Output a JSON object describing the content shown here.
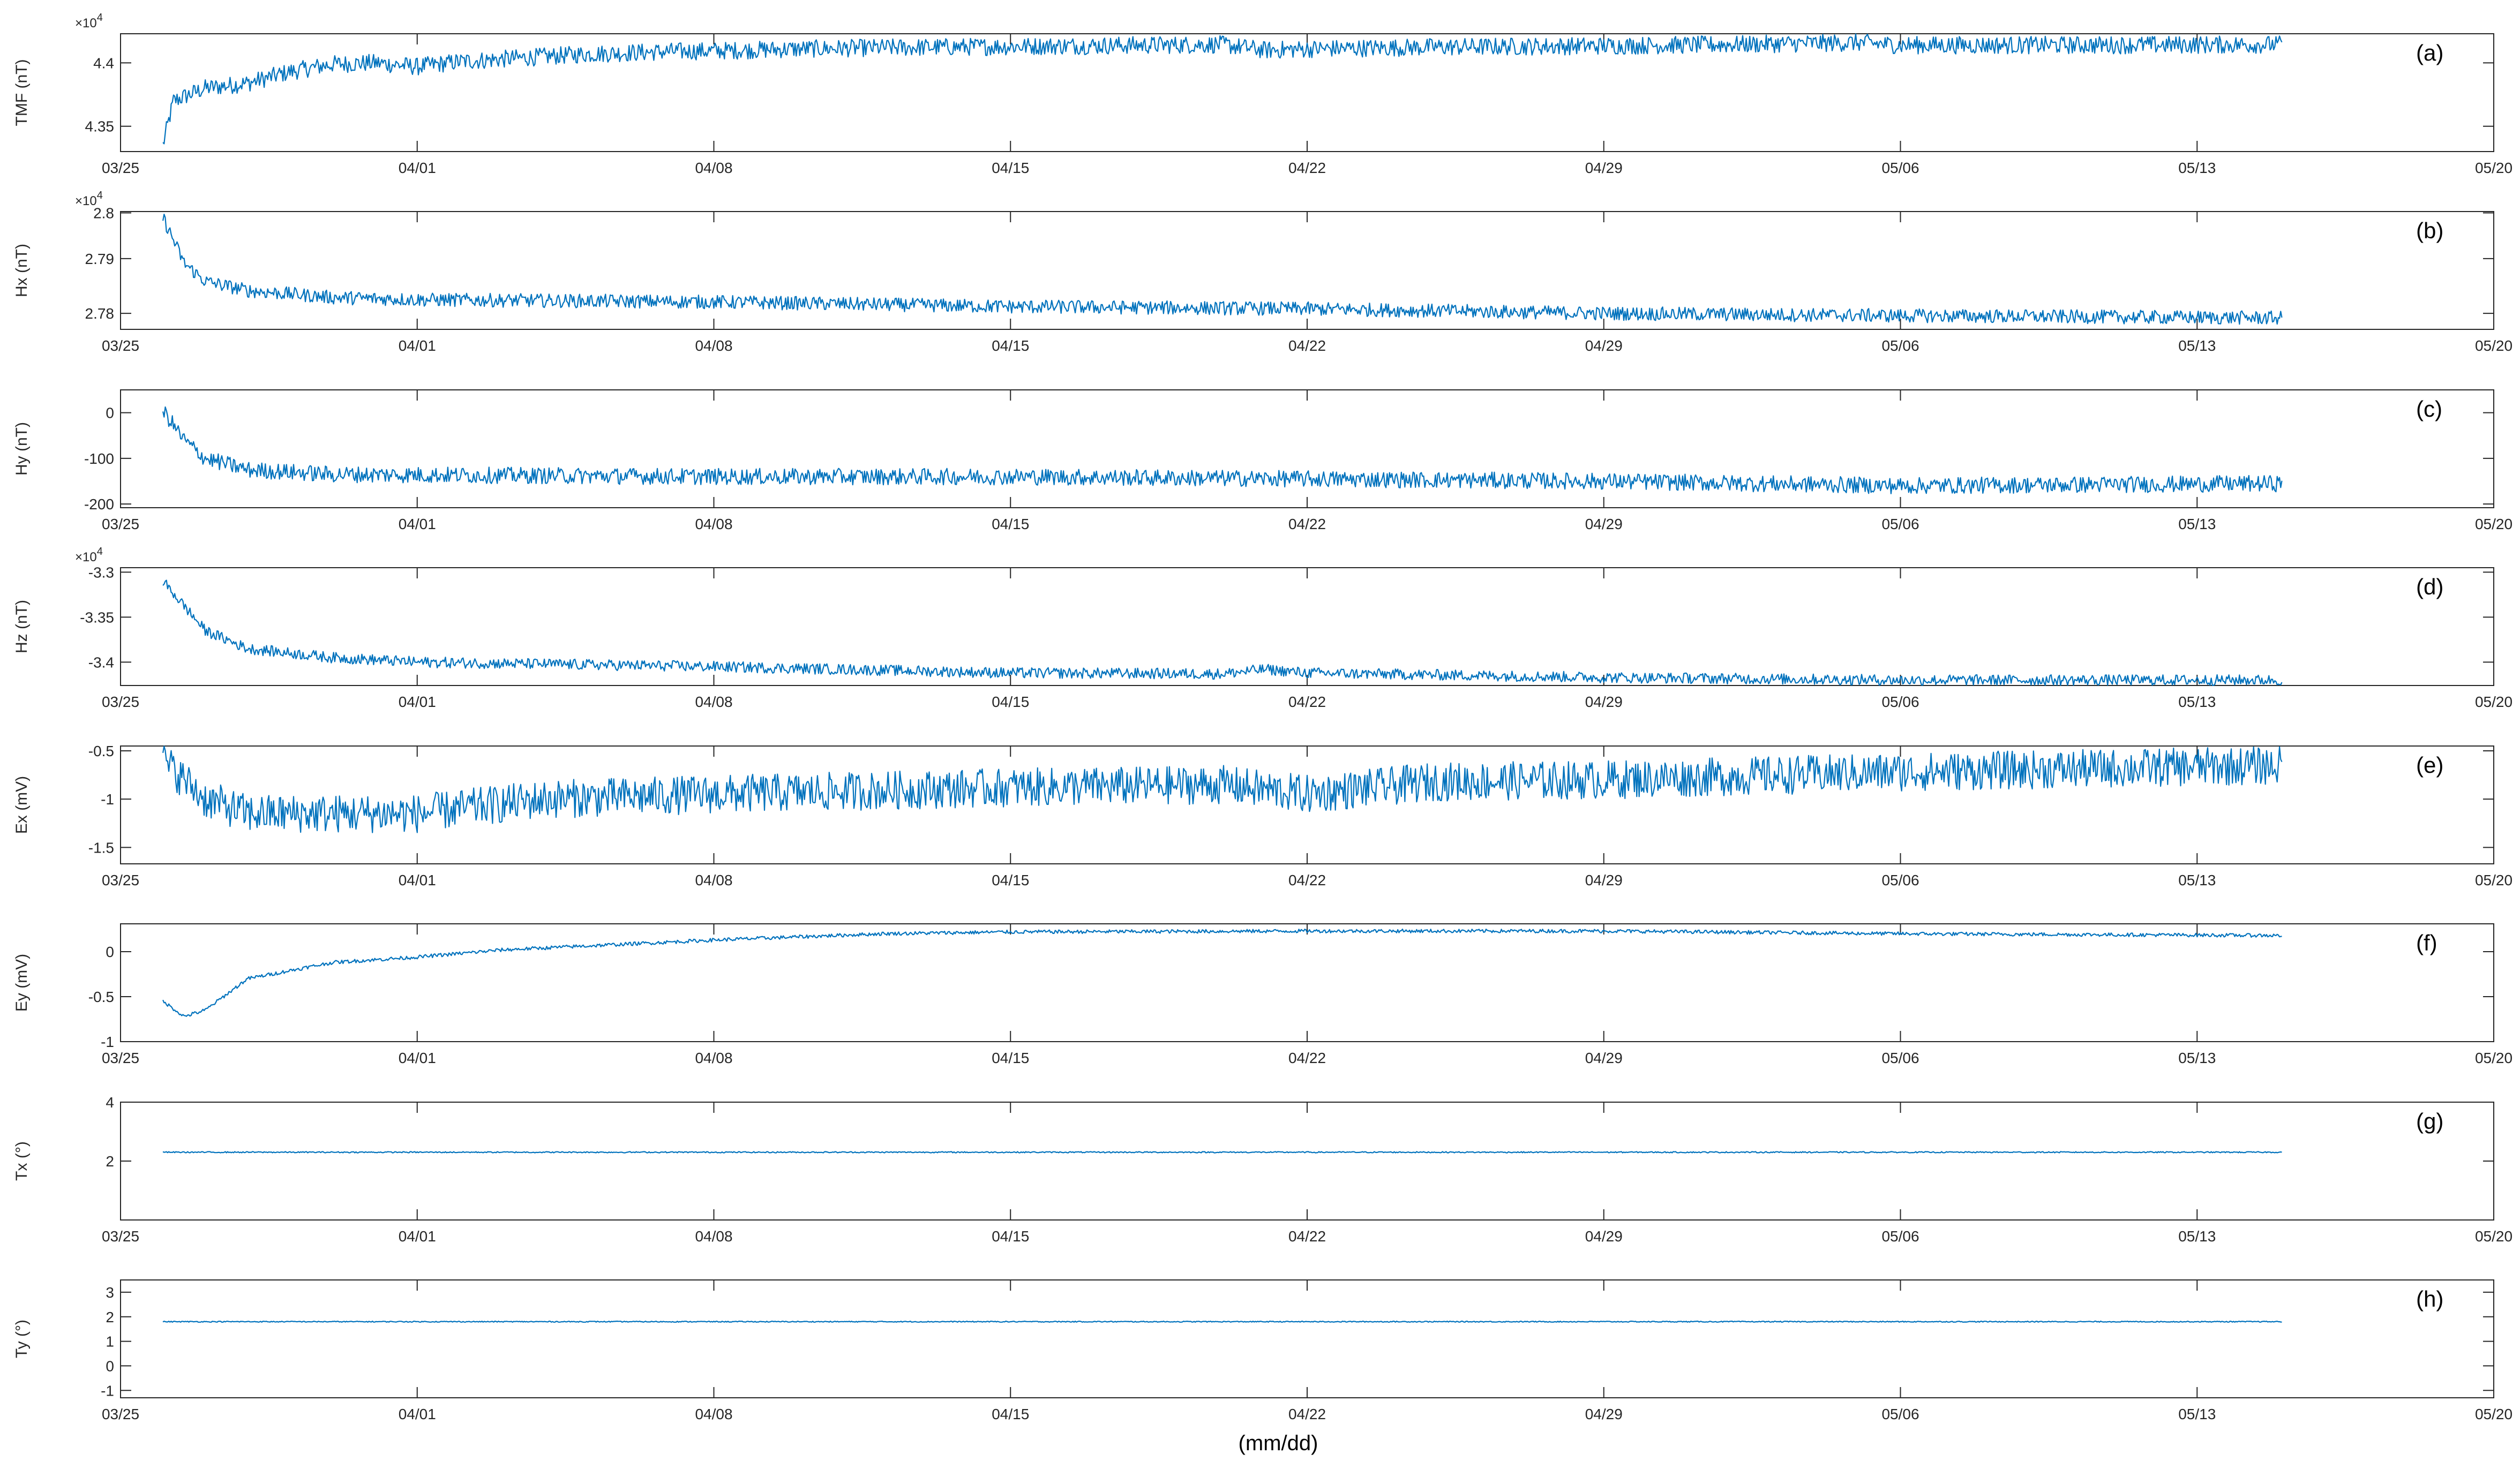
{
  "figure": {
    "xlabel": "(mm/dd)",
    "line_color": "#0072BD",
    "axis_color": "#262626",
    "x_axis_type": "date",
    "x_range": [
      "03/25",
      "05/20"
    ],
    "x_ticks": [
      "03/25",
      "04/01",
      "04/08",
      "04/15",
      "04/22",
      "04/29",
      "05/06",
      "05/13",
      "05/20"
    ]
  },
  "chart_data": [
    {
      "type": "line",
      "tag": "(a)",
      "ylabel": "TMF (nT)",
      "multiplier": "10",
      "exponent": "4",
      "ylim": [
        43300,
        44230
      ],
      "yticks": [
        {
          "value": 43500,
          "label": "4.35"
        },
        {
          "value": 44000,
          "label": "4.4"
        }
      ],
      "noise": 70,
      "data": [
        [
          "03/26",
          43350
        ],
        [
          "03/26 06:00",
          43700
        ],
        [
          "03/27",
          43800
        ],
        [
          "03/28",
          43840
        ],
        [
          "03/29",
          43930
        ],
        [
          "03/30",
          43990
        ],
        [
          "03/31",
          44000
        ],
        [
          "04/01",
          43970
        ],
        [
          "04/02",
          44010
        ],
        [
          "04/03",
          44030
        ],
        [
          "04/04",
          44050
        ],
        [
          "04/05",
          44070
        ],
        [
          "04/06",
          44080
        ],
        [
          "04/07",
          44090
        ],
        [
          "04/08",
          44095
        ],
        [
          "04/10",
          44110
        ],
        [
          "04/12",
          44120
        ],
        [
          "04/15",
          44130
        ],
        [
          "04/18",
          44140
        ],
        [
          "04/20",
          44145
        ],
        [
          "04/21",
          44100
        ],
        [
          "04/22",
          44110
        ],
        [
          "04/25",
          44125
        ],
        [
          "04/29",
          44135
        ],
        [
          "05/02",
          44145
        ],
        [
          "05/05",
          44160
        ],
        [
          "05/06",
          44140
        ],
        [
          "05/10",
          44140
        ],
        [
          "05/15",
          44145
        ]
      ]
    },
    {
      "type": "line",
      "tag": "(b)",
      "ylabel": "Hx (nT)",
      "multiplier": "10",
      "exponent": "4",
      "ylim": [
        27745,
        28003
      ],
      "yticks": [
        {
          "value": 27780,
          "label": "2.78"
        },
        {
          "value": 27900,
          "label": "2.79"
        },
        {
          "value": 28000,
          "label": "2.8"
        }
      ],
      "noise": 15,
      "data": [
        [
          "03/26",
          27990
        ],
        [
          "03/26 12:00",
          27890
        ],
        [
          "03/27",
          27850
        ],
        [
          "03/28",
          27830
        ],
        [
          "03/30",
          27815
        ],
        [
          "04/01",
          27810
        ],
        [
          "04/08",
          27805
        ],
        [
          "04/15",
          27795
        ],
        [
          "04/22",
          27790
        ],
        [
          "04/29",
          27780
        ],
        [
          "05/06",
          27775
        ],
        [
          "05/15",
          27770
        ]
      ]
    },
    {
      "type": "line",
      "tag": "(c)",
      "ylabel": "Hy (nT)",
      "multiplier": "",
      "exponent": "",
      "ylim": [
        -208,
        50
      ],
      "yticks": [
        {
          "value": 0,
          "label": "0"
        },
        {
          "value": -100,
          "label": "-100"
        },
        {
          "value": -200,
          "label": "-200"
        }
      ],
      "noise": 18,
      "data": [
        [
          "03/26",
          5
        ],
        [
          "03/26 12:00",
          -60
        ],
        [
          "03/27",
          -100
        ],
        [
          "03/28",
          -125
        ],
        [
          "03/30",
          -135
        ],
        [
          "04/08",
          -140
        ],
        [
          "04/15",
          -140
        ],
        [
          "04/22",
          -145
        ],
        [
          "04/29",
          -150
        ],
        [
          "05/06",
          -160
        ],
        [
          "05/15",
          -155
        ]
      ]
    },
    {
      "type": "line",
      "tag": "(d)",
      "ylabel": "Hz (nT)",
      "multiplier": "10",
      "exponent": "4",
      "ylim": [
        -34260,
        -32950
      ],
      "yticks": [
        {
          "value": -33000,
          "label": "-3.3"
        },
        {
          "value": -33500,
          "label": "-3.35"
        },
        {
          "value": -34000,
          "label": "-3.4"
        }
      ],
      "noise": 60,
      "data": [
        [
          "03/26",
          -33100
        ],
        [
          "03/27",
          -33650
        ],
        [
          "03/28",
          -33850
        ],
        [
          "03/30",
          -33950
        ],
        [
          "04/01",
          -34000
        ],
        [
          "04/08",
          -34050
        ],
        [
          "04/15",
          -34120
        ],
        [
          "04/20",
          -34130
        ],
        [
          "04/21",
          -34080
        ],
        [
          "04/22",
          -34120
        ],
        [
          "04/29",
          -34170
        ],
        [
          "05/06",
          -34200
        ],
        [
          "05/15",
          -34200
        ]
      ]
    },
    {
      "type": "line",
      "tag": "(e)",
      "ylabel": "Ex (mV)",
      "multiplier": "",
      "exponent": "",
      "ylim": [
        -1.67,
        -0.45
      ],
      "yticks": [
        {
          "value": -0.5,
          "label": "-0.5"
        },
        {
          "value": -1,
          "label": "-1"
        },
        {
          "value": -1.5,
          "label": "-1.5"
        }
      ],
      "noise": 0.2,
      "data": [
        [
          "03/26",
          -0.6
        ],
        [
          "03/27",
          -1.0
        ],
        [
          "03/28",
          -1.15
        ],
        [
          "04/01",
          -1.15
        ],
        [
          "04/04",
          -1.0
        ],
        [
          "04/08",
          -0.95
        ],
        [
          "04/15",
          -0.88
        ],
        [
          "04/20",
          -0.85
        ],
        [
          "04/22",
          -0.95
        ],
        [
          "04/25",
          -0.82
        ],
        [
          "04/29",
          -0.8
        ],
        [
          "05/06",
          -0.72
        ],
        [
          "05/15",
          -0.65
        ]
      ]
    },
    {
      "type": "line",
      "tag": "(f)",
      "ylabel": "Ey (mV)",
      "multiplier": "",
      "exponent": "",
      "ylim": [
        -1,
        0.31
      ],
      "yticks": [
        {
          "value": 0,
          "label": "0"
        },
        {
          "value": -0.5,
          "label": "-0.5"
        },
        {
          "value": -1,
          "label": "-1"
        }
      ],
      "noise": 0.02,
      "data": [
        [
          "03/26",
          -0.55
        ],
        [
          "03/26 12:00",
          -0.72
        ],
        [
          "03/27",
          -0.65
        ],
        [
          "03/28",
          -0.3
        ],
        [
          "03/30",
          -0.12
        ],
        [
          "04/01",
          -0.06
        ],
        [
          "04/03",
          0.02
        ],
        [
          "04/08",
          0.13
        ],
        [
          "04/12",
          0.2
        ],
        [
          "04/15",
          0.22
        ],
        [
          "04/22",
          0.23
        ],
        [
          "04/29",
          0.23
        ],
        [
          "05/06",
          0.2
        ],
        [
          "05/15",
          0.18
        ]
      ]
    },
    {
      "type": "line",
      "tag": "(g)",
      "ylabel": "Tx (°)",
      "multiplier": "",
      "exponent": "",
      "ylim": [
        0,
        4
      ],
      "yticks": [
        {
          "value": 4,
          "label": "4"
        },
        {
          "value": 2,
          "label": "2"
        }
      ],
      "noise": 0.02,
      "data": [
        [
          "03/26",
          2.3
        ],
        [
          "05/15",
          2.3
        ]
      ]
    },
    {
      "type": "line",
      "tag": "(h)",
      "ylabel": "Ty (°)",
      "multiplier": "",
      "exponent": "",
      "ylim": [
        -1.3,
        3.5
      ],
      "yticks": [
        {
          "value": 3,
          "label": "3"
        },
        {
          "value": 2,
          "label": "2"
        },
        {
          "value": 1,
          "label": "1"
        },
        {
          "value": 0,
          "label": "0"
        },
        {
          "value": -1,
          "label": "-1"
        }
      ],
      "noise": 0.02,
      "data": [
        [
          "03/26",
          1.8
        ],
        [
          "05/15",
          1.8
        ]
      ]
    }
  ]
}
